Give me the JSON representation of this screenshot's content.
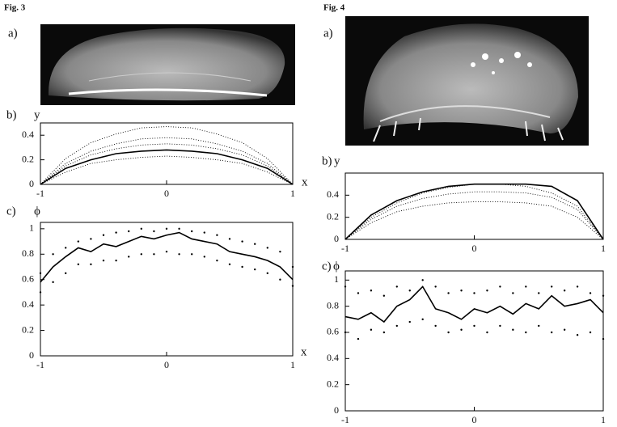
{
  "figures": [
    {
      "label": "Fig. 3",
      "panels": [
        "a)",
        "b)",
        "c)"
      ]
    },
    {
      "label": "Fig. 4",
      "panels": [
        "a)",
        "b)",
        "c)"
      ]
    }
  ],
  "chart_data": [
    {
      "type": "line",
      "xlabel": "x",
      "ylabel": "y",
      "x": [
        -1,
        -0.8,
        -0.6,
        -0.4,
        -0.2,
        0,
        0.2,
        0.4,
        0.6,
        0.8,
        1
      ],
      "xlim": [
        -1,
        1
      ],
      "xticks": [
        -1,
        0,
        1
      ],
      "ylim": [
        0,
        0.5
      ],
      "yticks": [
        0,
        0.2,
        0.4
      ],
      "series": [
        {
          "color": "#000",
          "style": "solid",
          "values": [
            0,
            0.13,
            0.2,
            0.25,
            0.27,
            0.28,
            0.27,
            0.25,
            0.2,
            0.13,
            0
          ]
        },
        {
          "color": "#000",
          "style": "dotted",
          "values": [
            0,
            0.21,
            0.34,
            0.41,
            0.46,
            0.47,
            0.46,
            0.41,
            0.34,
            0.21,
            0
          ]
        },
        {
          "color": "#000",
          "style": "dotted",
          "values": [
            0,
            0.17,
            0.27,
            0.33,
            0.37,
            0.38,
            0.37,
            0.33,
            0.27,
            0.17,
            0
          ]
        },
        {
          "color": "#000",
          "style": "dotted",
          "values": [
            0,
            0.15,
            0.24,
            0.29,
            0.32,
            0.33,
            0.32,
            0.29,
            0.24,
            0.15,
            0
          ]
        },
        {
          "color": "#000",
          "style": "dotted",
          "values": [
            0,
            0.1,
            0.17,
            0.2,
            0.22,
            0.23,
            0.22,
            0.2,
            0.17,
            0.1,
            0
          ]
        }
      ]
    },
    {
      "type": "line",
      "xlabel": "x",
      "ylabel": "ϕ",
      "x": [
        -1,
        -0.9,
        -0.8,
        -0.7,
        -0.6,
        -0.5,
        -0.4,
        -0.3,
        -0.2,
        -0.1,
        0,
        0.1,
        0.2,
        0.3,
        0.4,
        0.5,
        0.6,
        0.7,
        0.8,
        0.9,
        1
      ],
      "xlim": [
        -1,
        1
      ],
      "xticks": [
        -1,
        0,
        1
      ],
      "ylim": [
        0,
        1.05
      ],
      "yticks": [
        0,
        0.2,
        0.4,
        0.6,
        0.8,
        1
      ],
      "series": [
        {
          "color": "#000",
          "style": "solid",
          "values": [
            0.58,
            0.7,
            0.78,
            0.85,
            0.82,
            0.88,
            0.86,
            0.9,
            0.94,
            0.92,
            0.95,
            0.97,
            0.92,
            0.9,
            0.88,
            0.82,
            0.8,
            0.78,
            0.75,
            0.7,
            0.6
          ]
        },
        {
          "color": "#000",
          "style": "dots",
          "values": [
            0.65,
            0.8,
            0.85,
            0.9,
            0.92,
            0.95,
            0.97,
            0.98,
            1.0,
            0.98,
            1.0,
            1.0,
            0.98,
            0.97,
            0.95,
            0.92,
            0.9,
            0.88,
            0.85,
            0.82,
            0.7
          ]
        },
        {
          "color": "#000",
          "style": "dots",
          "values": [
            0.5,
            0.58,
            0.65,
            0.72,
            0.72,
            0.75,
            0.75,
            0.78,
            0.8,
            0.8,
            0.82,
            0.8,
            0.8,
            0.78,
            0.75,
            0.72,
            0.7,
            0.68,
            0.65,
            0.6,
            0.55
          ]
        }
      ]
    },
    {
      "type": "line",
      "ylabel": "y",
      "x": [
        -1,
        -0.8,
        -0.6,
        -0.4,
        -0.2,
        0,
        0.2,
        0.4,
        0.6,
        0.8,
        1
      ],
      "xlim": [
        -1,
        1
      ],
      "xticks": [
        -1,
        0,
        1
      ],
      "ylim": [
        0,
        0.6
      ],
      "yticks": [
        0,
        0.2,
        0.4
      ],
      "series": [
        {
          "color": "#000",
          "style": "solid",
          "values": [
            0,
            0.22,
            0.35,
            0.43,
            0.48,
            0.5,
            0.5,
            0.5,
            0.48,
            0.35,
            0
          ]
        },
        {
          "color": "#000",
          "style": "dotted",
          "values": [
            0,
            0.2,
            0.33,
            0.42,
            0.47,
            0.5,
            0.5,
            0.48,
            0.42,
            0.3,
            0
          ]
        },
        {
          "color": "#000",
          "style": "dotted",
          "values": [
            0,
            0.18,
            0.3,
            0.37,
            0.41,
            0.43,
            0.43,
            0.42,
            0.38,
            0.27,
            0
          ]
        },
        {
          "color": "#000",
          "style": "dotted",
          "values": [
            0,
            0.15,
            0.25,
            0.3,
            0.33,
            0.34,
            0.34,
            0.33,
            0.3,
            0.2,
            0
          ]
        }
      ]
    },
    {
      "type": "line",
      "ylabel": "ϕ",
      "x": [
        -1,
        -0.9,
        -0.8,
        -0.7,
        -0.6,
        -0.5,
        -0.4,
        -0.3,
        -0.2,
        -0.1,
        0,
        0.1,
        0.2,
        0.3,
        0.4,
        0.5,
        0.6,
        0.7,
        0.8,
        0.9,
        1
      ],
      "xlim": [
        -1,
        1
      ],
      "xticks": [
        -1,
        0,
        1
      ],
      "ylim": [
        0,
        1.07
      ],
      "yticks": [
        0,
        0.2,
        0.4,
        0.6,
        0.8,
        1
      ],
      "series": [
        {
          "color": "#000",
          "style": "solid",
          "values": [
            0.72,
            0.7,
            0.75,
            0.68,
            0.8,
            0.85,
            0.95,
            0.78,
            0.75,
            0.7,
            0.78,
            0.75,
            0.8,
            0.74,
            0.82,
            0.78,
            0.88,
            0.8,
            0.82,
            0.85,
            0.75
          ]
        },
        {
          "color": "#000",
          "style": "dots",
          "values": [
            0.95,
            0.9,
            0.92,
            0.88,
            0.95,
            0.92,
            1.0,
            0.95,
            0.9,
            0.92,
            0.9,
            0.92,
            0.95,
            0.9,
            0.95,
            0.9,
            0.95,
            0.92,
            0.95,
            0.9,
            0.88
          ]
        },
        {
          "color": "#000",
          "style": "dots",
          "values": [
            0.6,
            0.55,
            0.62,
            0.6,
            0.65,
            0.68,
            0.7,
            0.65,
            0.6,
            0.62,
            0.65,
            0.6,
            0.65,
            0.62,
            0.6,
            0.65,
            0.6,
            0.62,
            0.58,
            0.6,
            0.55
          ]
        }
      ]
    }
  ]
}
